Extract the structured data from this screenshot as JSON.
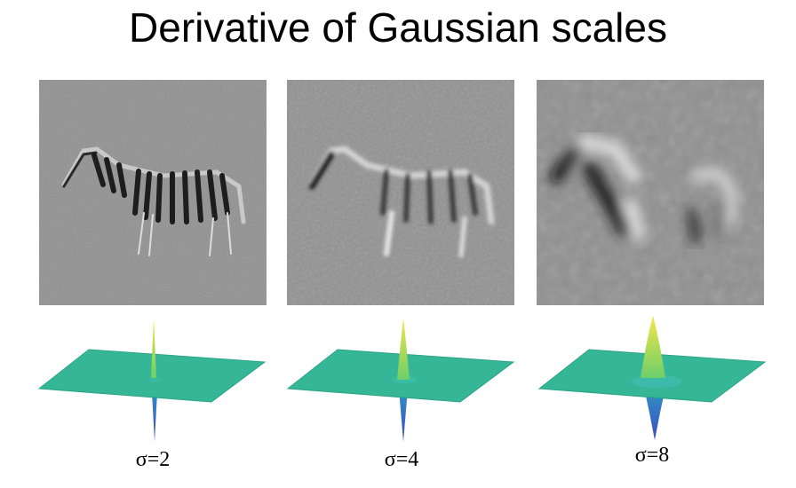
{
  "title": "Derivative of Gaussian scales",
  "panels": [
    {
      "label": "σ=2",
      "sigma": 2
    },
    {
      "label": "σ=4",
      "sigma": 4
    },
    {
      "label": "σ=8",
      "sigma": 8
    }
  ],
  "colors": {
    "surface": "#35b797",
    "surface_edge": "#2aa386",
    "peak_top": "#f7e649",
    "peak_mid": "#6ccf69",
    "trough": "#3a4cc2",
    "image_bg": "#8c8c8c"
  }
}
